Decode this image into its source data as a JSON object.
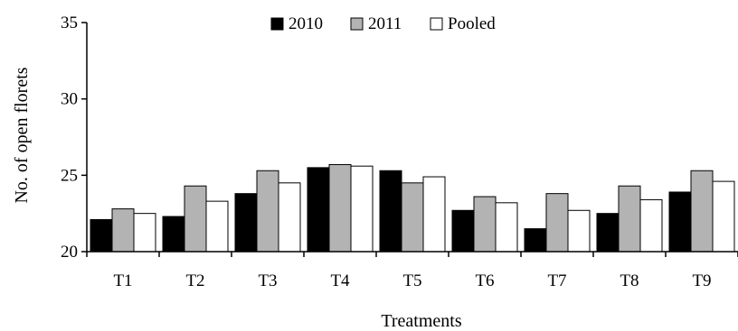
{
  "chart_data": {
    "type": "bar",
    "categories": [
      "T1",
      "T2",
      "T3",
      "T4",
      "T5",
      "T6",
      "T7",
      "T8",
      "T9"
    ],
    "series": [
      {
        "name": "2010",
        "color": "#000000",
        "values": [
          22.1,
          22.3,
          23.8,
          25.5,
          25.3,
          22.7,
          21.5,
          22.5,
          23.9
        ]
      },
      {
        "name": "2011",
        "color": "#b3b3b3",
        "values": [
          22.8,
          24.3,
          25.3,
          25.7,
          24.5,
          23.6,
          23.8,
          24.3,
          25.3
        ]
      },
      {
        "name": "Pooled",
        "color": "#ffffff",
        "values": [
          22.5,
          23.3,
          24.5,
          25.6,
          24.9,
          23.2,
          22.7,
          23.4,
          24.6
        ]
      }
    ],
    "xlabel": "Treatments",
    "ylabel": "No. of open florets",
    "ylim": [
      20,
      35
    ],
    "yticks": [
      20,
      25,
      30,
      35
    ],
    "grid": false,
    "legend_position": "top-center"
  }
}
